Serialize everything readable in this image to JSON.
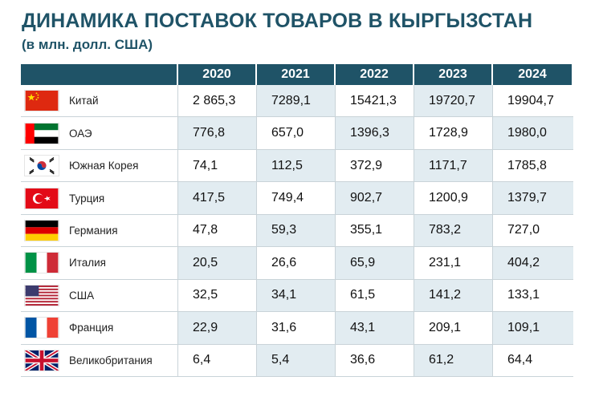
{
  "title": "ДИНАМИКА ПОСТАВОК ТОВАРОВ В КЫРГЫЗСТАН",
  "subtitle": "(в млн. долл. США)",
  "table": {
    "headers": [
      "2020",
      "2021",
      "2022",
      "2023",
      "2024"
    ],
    "rows": [
      {
        "country": "Китай",
        "flag": "china-flag-icon",
        "values": [
          "2 865,3",
          "7289,1",
          "15421,3",
          "19720,7",
          "19904,7"
        ]
      },
      {
        "country": "ОАЭ",
        "flag": "uae-flag-icon",
        "values": [
          "776,8",
          "657,0",
          "1396,3",
          "1728,9",
          "1980,0"
        ]
      },
      {
        "country": "Южная Корея",
        "flag": "south-korea-flag-icon",
        "values": [
          "74,1",
          "112,5",
          "372,9",
          "1171,7",
          "1785,8"
        ]
      },
      {
        "country": "Турция",
        "flag": "turkey-flag-icon",
        "values": [
          "417,5",
          "749,4",
          "902,7",
          "1200,9",
          "1379,7"
        ]
      },
      {
        "country": "Германия",
        "flag": "germany-flag-icon",
        "values": [
          "47,8",
          "59,3",
          "355,1",
          "783,2",
          "727,0"
        ]
      },
      {
        "country": "Италия",
        "flag": "italy-flag-icon",
        "values": [
          "20,5",
          "26,6",
          "65,9",
          "231,1",
          "404,2"
        ]
      },
      {
        "country": "США",
        "flag": "usa-flag-icon",
        "values": [
          "32,5",
          "34,1",
          "61,5",
          "141,2",
          "133,1"
        ]
      },
      {
        "country": "Франция",
        "flag": "france-flag-icon",
        "values": [
          "22,9",
          "31,6",
          "43,1",
          "209,1",
          "109,1"
        ]
      },
      {
        "country": "Великобритания",
        "flag": "uk-flag-icon",
        "values": [
          "6,4",
          "5,4",
          "36,6",
          "61,2",
          "64,4"
        ]
      }
    ]
  }
}
